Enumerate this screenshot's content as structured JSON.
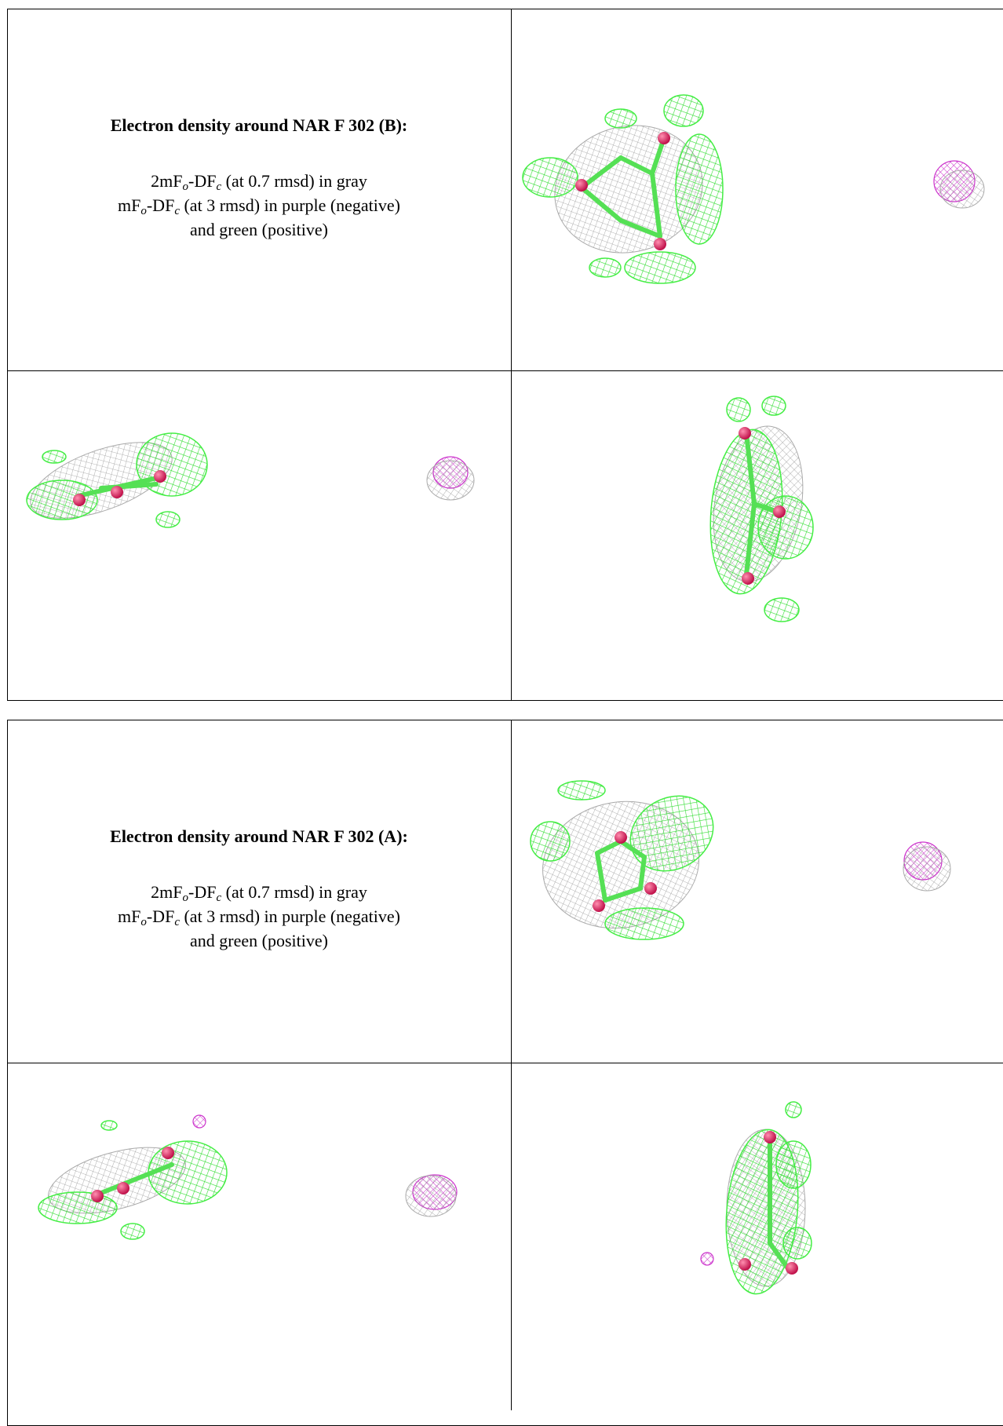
{
  "panels": [
    {
      "title": "Electron density around NAR F 302 (B):",
      "lines": [
        [
          "2mF",
          "o",
          "-DF",
          "c",
          " (at 0.7 rmsd) in gray"
        ],
        [
          "mF",
          "o",
          "-DF",
          "c",
          " (at 3 rmsd) in purple (negative)"
        ],
        [
          "and green (positive)"
        ]
      ]
    },
    {
      "title": "Electron density around NAR F 302 (A):",
      "lines": [
        [
          "2mF",
          "o",
          "-DF",
          "c",
          " (at 0.7 rmsd) in gray"
        ],
        [
          "mF",
          "o",
          "-DF",
          "c",
          " (at 3 rmsd) in purple (negative)"
        ],
        [
          "and green (positive)"
        ]
      ]
    }
  ]
}
